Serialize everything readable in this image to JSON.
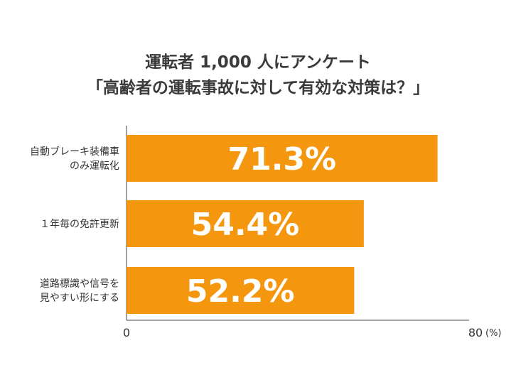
{
  "chart_data": {
    "type": "bar",
    "orientation": "horizontal",
    "title": "運転者 1,000 人にアンケート",
    "subtitle": "「高齢者の運転事故に対して有効な対策は？」",
    "categories": [
      [
        "自動ブレーキ装備車",
        "のみ運転化"
      ],
      [
        "１年毎の免許更新"
      ],
      [
        "道路標識や信号を",
        "見やすい形にする"
      ]
    ],
    "values": [
      71.3,
      54.4,
      52.2
    ],
    "data_labels": [
      "71.3%",
      "54.4%",
      "52.2%"
    ],
    "xlim": [
      0,
      80
    ],
    "x_ticks": [
      "0",
      "80"
    ],
    "x_unit": "(%)",
    "bar_color": "#f5960f",
    "grid": false,
    "legend": "none"
  }
}
